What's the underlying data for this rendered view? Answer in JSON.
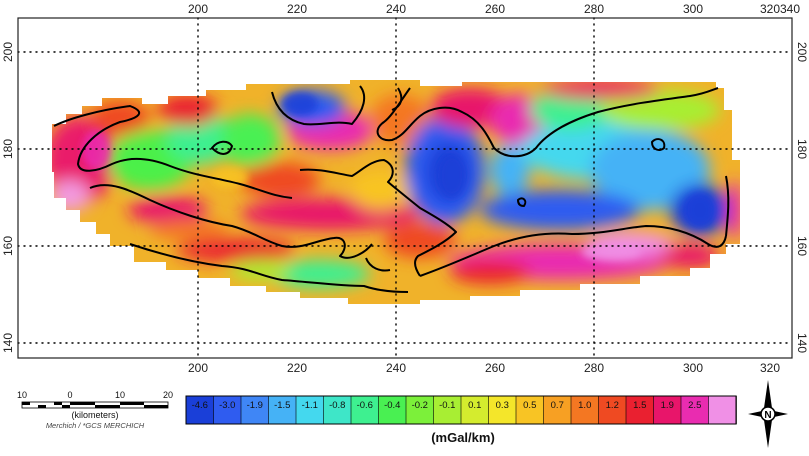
{
  "map": {
    "x_ticks": [
      "200",
      "220",
      "240",
      "260",
      "280",
      "300",
      "320",
      "340"
    ],
    "y_ticks": [
      "200",
      "180",
      "160",
      "140"
    ],
    "grid": true
  },
  "legend": {
    "values": [
      "-4.6",
      "-3.0",
      "-1.9",
      "-1.5",
      "-1.1",
      "-0.8",
      "-0.6",
      "-0.4",
      "-0.2",
      "-0.1",
      "0.1",
      "0.3",
      "0.5",
      "0.7",
      "1.0",
      "1.2",
      "1.5",
      "1.9",
      "2.5"
    ],
    "colors": [
      "#1a3fd8",
      "#2f5cf0",
      "#3f86f6",
      "#45b2f6",
      "#44d8ee",
      "#3ee6c8",
      "#3ef090",
      "#49f052",
      "#7cf03a",
      "#a8ee33",
      "#d4ec2e",
      "#f4e62a",
      "#f8c424",
      "#f7a023",
      "#f47722",
      "#ef4a22",
      "#ea2030",
      "#e8156a",
      "#e92cb0",
      "#f090e6"
    ],
    "unit": "(mGal/km)"
  },
  "scale_bar": {
    "ticks": [
      "10",
      "0",
      "10",
      "20"
    ],
    "unit": "(kilometers)",
    "projection": "Merchich / *GCS MERCHICH"
  },
  "north_arrow": {
    "label": "N"
  }
}
